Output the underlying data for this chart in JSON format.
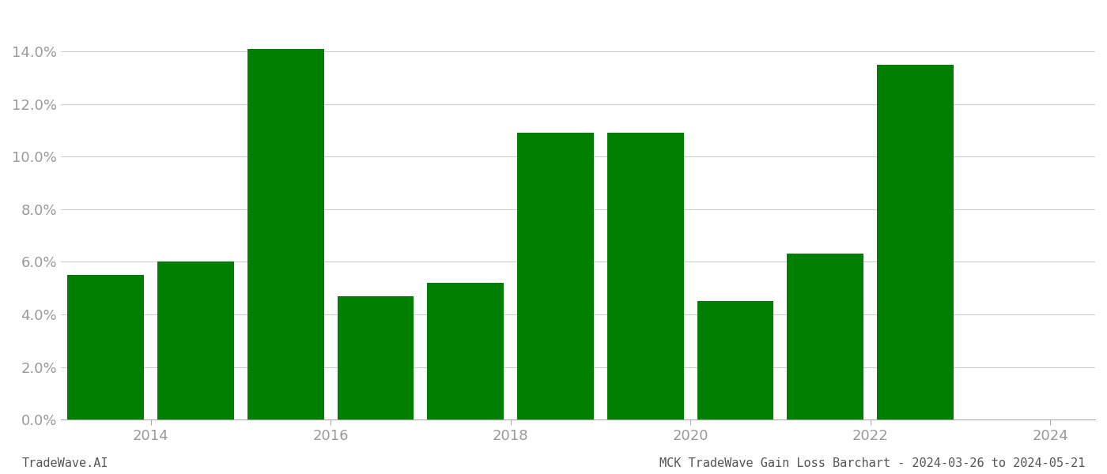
{
  "years": [
    2013.5,
    2014.5,
    2015.5,
    2016.5,
    2017.5,
    2018.5,
    2019.5,
    2020.5,
    2021.5,
    2022.5
  ],
  "values": [
    0.055,
    0.06,
    0.141,
    0.047,
    0.052,
    0.109,
    0.109,
    0.045,
    0.063,
    0.135
  ],
  "bar_color": "#008000",
  "ylim": [
    0,
    0.155
  ],
  "yticks": [
    0.0,
    0.02,
    0.04,
    0.06,
    0.08,
    0.1,
    0.12,
    0.14
  ],
  "xtick_positions": [
    2014,
    2016,
    2018,
    2020,
    2022,
    2024
  ],
  "xtick_labels": [
    "2014",
    "2016",
    "2018",
    "2020",
    "2022",
    "2024"
  ],
  "xlim": [
    2013.0,
    2024.5
  ],
  "footer_left": "TradeWave.AI",
  "footer_right": "MCK TradeWave Gain Loss Barchart - 2024-03-26 to 2024-05-21",
  "bg_color": "#ffffff",
  "grid_color": "#cccccc",
  "tick_color": "#999999",
  "bar_width": 0.85
}
